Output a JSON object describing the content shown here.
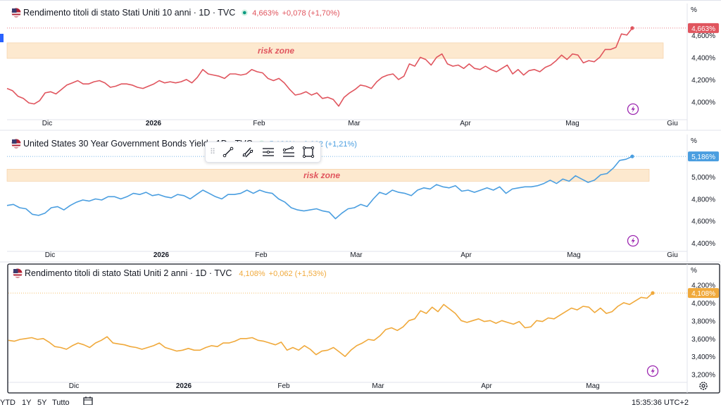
{
  "colors": {
    "series_10y": "#e0555e",
    "series_30y": "#4a9ee0",
    "series_2y": "#f0a93b",
    "risk_fill": "#fde8cd",
    "risk_text": "#e0555e",
    "neutral_text": "#131722"
  },
  "panes": [
    {
      "id": "p10",
      "name": "Rendimento titoli di stato Stati Uniti 10 anni · 1D · TVC",
      "last_value": "4,663%",
      "change": "+0,078 (+1,70%)",
      "unit": "%",
      "risk_label": "risk zone",
      "flag_icon": "us-flag-icon",
      "status_icon": "market-open-dot-icon",
      "corner_icon": "lightning-icon"
    },
    {
      "id": "p30",
      "name": "United States 30 Year Government Bonds Yield · 1D · TVC",
      "last_value": "5,186%",
      "change": "+0,062 (+1,21%)",
      "unit": "%",
      "risk_label": "risk zone",
      "flag_icon": "us-flag-icon",
      "status_icon": "market-open-dot-icon",
      "corner_icon": "lightning-icon"
    },
    {
      "id": "p2",
      "name": "Rendimento titoli di stato Stati Uniti 2 anni · 1D · TVC",
      "last_value": "4,108%",
      "change": "+0,062 (+1,53%)",
      "unit": "%",
      "flag_icon": "us-flag-icon",
      "corner_icon": "lightning-icon",
      "settings_icon": "gear-icon"
    }
  ],
  "drawing_toolbar": {
    "icons": [
      "trend-line-icon",
      "multi-line-icon",
      "horizontal-lines-icon",
      "path-icon",
      "rectangle-icon"
    ]
  },
  "bottom_bar": {
    "ranges": [
      "YTD",
      "1Y",
      "5Y",
      "Tutto"
    ],
    "calendar_icon": "calendar-icon",
    "time": "15:35:36 UTC+2"
  },
  "chart_data": [
    {
      "type": "line",
      "title": "Rendimento titoli di stato Stati Uniti 10 anni · 1D · TVC",
      "x_ticks": [
        "Dic",
        "2026",
        "Feb",
        "Mar",
        "Apr",
        "Mag",
        "Giu"
      ],
      "y_ticks": [
        "4,000%",
        "4,200%",
        "4,400%",
        "4,600%"
      ],
      "ylim": [
        3.87,
        4.77
      ],
      "risk_zone": [
        4.39,
        4.53
      ],
      "last_label": "4,663%",
      "series": [
        {
          "values": [
            4.12,
            4.1,
            4.05,
            4.03,
            3.99,
            3.98,
            4.01,
            4.08,
            4.09,
            4.07,
            4.11,
            4.15,
            4.17,
            4.19,
            4.16,
            4.16,
            4.18,
            4.19,
            4.17,
            4.13,
            4.14,
            4.16,
            4.16,
            4.15,
            4.13,
            4.12,
            4.14,
            4.16,
            4.19,
            4.17,
            4.18,
            4.17,
            4.18,
            4.2,
            4.17,
            4.22,
            4.29,
            4.25,
            4.24,
            4.23,
            4.21,
            4.25,
            4.25,
            4.24,
            4.25,
            4.29,
            4.27,
            4.26,
            4.21,
            4.19,
            4.21,
            4.17,
            4.11,
            4.06,
            4.07,
            4.09,
            4.06,
            4.08,
            4.03,
            4.04,
            4.02,
            3.96,
            4.04,
            4.08,
            4.11,
            4.15,
            4.14,
            4.12,
            4.18,
            4.22,
            4.24,
            4.25,
            4.2,
            4.23,
            4.34,
            4.32,
            4.4,
            4.38,
            4.33,
            4.4,
            4.43,
            4.34,
            4.32,
            4.33,
            4.3,
            4.34,
            4.3,
            4.29,
            4.32,
            4.29,
            4.27,
            4.3,
            4.33,
            4.25,
            4.29,
            4.24,
            4.28,
            4.29,
            4.27,
            4.31,
            4.33,
            4.37,
            4.42,
            4.38,
            4.43,
            4.42,
            4.35,
            4.37,
            4.36,
            4.4,
            4.47,
            4.47,
            4.49,
            4.61,
            4.6,
            4.663
          ]
        }
      ]
    },
    {
      "type": "line",
      "title": "United States 30 Year Government Bonds Yield · 1D · TVC",
      "x_ticks": [
        "Dic",
        "2026",
        "Feb",
        "Mar",
        "Apr",
        "Mag",
        "Giu"
      ],
      "y_ticks": [
        "4,400%",
        "4,600%",
        "4,800%",
        "5,000%"
      ],
      "ylim": [
        4.355,
        5.27
      ],
      "risk_zone": [
        4.96,
        5.07
      ],
      "last_label": "5,186%",
      "series": [
        {
          "values": [
            4.74,
            4.75,
            4.72,
            4.71,
            4.66,
            4.65,
            4.67,
            4.72,
            4.73,
            4.7,
            4.74,
            4.77,
            4.79,
            4.78,
            4.8,
            4.79,
            4.82,
            4.82,
            4.8,
            4.82,
            4.85,
            4.84,
            4.86,
            4.83,
            4.84,
            4.82,
            4.81,
            4.84,
            4.83,
            4.8,
            4.84,
            4.88,
            4.85,
            4.82,
            4.8,
            4.84,
            4.84,
            4.85,
            4.88,
            4.85,
            4.88,
            4.86,
            4.85,
            4.8,
            4.77,
            4.72,
            4.7,
            4.69,
            4.7,
            4.71,
            4.69,
            4.68,
            4.62,
            4.67,
            4.71,
            4.72,
            4.75,
            4.73,
            4.8,
            4.86,
            4.84,
            4.88,
            4.86,
            4.85,
            4.83,
            4.88,
            4.9,
            4.89,
            4.93,
            4.91,
            4.9,
            4.92,
            4.87,
            4.88,
            4.86,
            4.88,
            4.9,
            4.88,
            4.91,
            4.85,
            4.89,
            4.9,
            4.91,
            4.91,
            4.92,
            4.94,
            4.97,
            4.94,
            4.98,
            4.96,
            5.01,
            4.98,
            4.95,
            4.97,
            5.02,
            5.03,
            5.08,
            5.15,
            5.16,
            5.186
          ]
        }
      ]
    },
    {
      "type": "line",
      "title": "Rendimento titoli di stato Stati Uniti 2 anni · 1D · TVC",
      "x_ticks": [
        "Dic",
        "2026",
        "Feb",
        "Mar",
        "Apr",
        "Mag"
      ],
      "y_ticks": [
        "3,200%",
        "3,400%",
        "3,600%",
        "3,800%",
        "4,000%",
        "4,200%"
      ],
      "ylim": [
        3.15,
        4.29
      ],
      "last_label": "4,108%",
      "series": [
        {
          "values": [
            3.58,
            3.57,
            3.59,
            3.6,
            3.61,
            3.59,
            3.6,
            3.56,
            3.51,
            3.5,
            3.48,
            3.52,
            3.55,
            3.53,
            3.5,
            3.55,
            3.58,
            3.62,
            3.55,
            3.54,
            3.53,
            3.51,
            3.5,
            3.48,
            3.5,
            3.52,
            3.55,
            3.5,
            3.48,
            3.46,
            3.47,
            3.49,
            3.47,
            3.47,
            3.5,
            3.52,
            3.51,
            3.55,
            3.55,
            3.57,
            3.6,
            3.6,
            3.61,
            3.58,
            3.57,
            3.55,
            3.53,
            3.56,
            3.47,
            3.5,
            3.47,
            3.52,
            3.48,
            3.42,
            3.46,
            3.47,
            3.5,
            3.45,
            3.4,
            3.47,
            3.52,
            3.55,
            3.59,
            3.58,
            3.63,
            3.7,
            3.72,
            3.69,
            3.73,
            3.8,
            3.82,
            3.91,
            3.88,
            3.95,
            3.9,
            3.98,
            3.93,
            3.88,
            3.8,
            3.78,
            3.8,
            3.82,
            3.79,
            3.8,
            3.77,
            3.8,
            3.78,
            3.76,
            3.79,
            3.72,
            3.73,
            3.8,
            3.79,
            3.83,
            3.82,
            3.86,
            3.9,
            3.94,
            3.92,
            3.96,
            3.95,
            3.89,
            3.94,
            3.88,
            3.9,
            3.96,
            4.0,
            3.98,
            4.02,
            4.06,
            4.05,
            4.108
          ]
        }
      ]
    }
  ]
}
